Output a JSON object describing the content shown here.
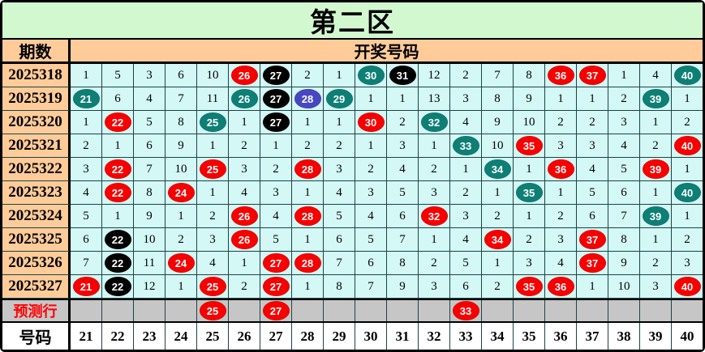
{
  "chart_data": {
    "type": "table",
    "title": "第二区",
    "header": {
      "period_label": "期数",
      "numbers_label": "开奖号码"
    },
    "columns": [
      "21",
      "22",
      "23",
      "24",
      "25",
      "26",
      "27",
      "28",
      "29",
      "30",
      "31",
      "32",
      "33",
      "34",
      "35",
      "36",
      "37",
      "38",
      "39",
      "40"
    ],
    "rows": [
      {
        "period": "2025318",
        "cells": [
          "1",
          "5",
          "3",
          "6",
          "10",
          "26:red",
          "27:black",
          "2",
          "1",
          "30:teal",
          "31:black",
          "12",
          "2",
          "7",
          "8",
          "36:red",
          "37:red",
          "1",
          "4",
          "40:teal"
        ]
      },
      {
        "period": "2025319",
        "cells": [
          "21:teal",
          "6",
          "4",
          "7",
          "11",
          "26:teal",
          "27:black",
          "28:blue",
          "29:teal",
          "1",
          "1",
          "13",
          "3",
          "8",
          "9",
          "1",
          "1",
          "2",
          "39:teal",
          "1"
        ]
      },
      {
        "period": "2025320",
        "cells": [
          "1",
          "22:red",
          "5",
          "8",
          "25:teal",
          "1",
          "27:black",
          "1",
          "1",
          "30:red",
          "2",
          "32:teal",
          "4",
          "9",
          "10",
          "2",
          "2",
          "3",
          "1",
          "2"
        ]
      },
      {
        "period": "2025321",
        "cells": [
          "2",
          "1",
          "6",
          "9",
          "1",
          "2",
          "1",
          "2",
          "2",
          "1",
          "3",
          "1",
          "33:teal",
          "10",
          "35:red",
          "3",
          "3",
          "4",
          "2",
          "40:red"
        ]
      },
      {
        "period": "2025322",
        "cells": [
          "3",
          "22:red",
          "7",
          "10",
          "25:red",
          "3",
          "2",
          "28:red",
          "3",
          "2",
          "4",
          "2",
          "1",
          "34:teal",
          "1",
          "36:red",
          "4",
          "5",
          "39:red",
          "1"
        ]
      },
      {
        "period": "2025323",
        "cells": [
          "4",
          "22:red",
          "8",
          "24:red",
          "1",
          "4",
          "3",
          "1",
          "4",
          "3",
          "5",
          "3",
          "2",
          "1",
          "35:teal",
          "1",
          "5",
          "6",
          "1",
          "40:teal"
        ]
      },
      {
        "period": "2025324",
        "cells": [
          "5",
          "1",
          "9",
          "1",
          "2",
          "26:red",
          "4",
          "28:red",
          "5",
          "4",
          "6",
          "32:red",
          "3",
          "2",
          "1",
          "2",
          "6",
          "7",
          "39:teal",
          "1"
        ]
      },
      {
        "period": "2025325",
        "cells": [
          "6",
          "22:black",
          "10",
          "2",
          "3",
          "26:red",
          "5",
          "1",
          "6",
          "5",
          "7",
          "1",
          "4",
          "34:red",
          "2",
          "3",
          "37:red",
          "8",
          "1",
          "2"
        ]
      },
      {
        "period": "2025326",
        "cells": [
          "7",
          "22:black",
          "11",
          "24:red",
          "4",
          "1",
          "27:red",
          "28:red",
          "7",
          "6",
          "8",
          "2",
          "5",
          "1",
          "3",
          "4",
          "37:red",
          "9",
          "2",
          "3"
        ]
      },
      {
        "period": "2025327",
        "cells": [
          "21:red",
          "22:black",
          "12",
          "1",
          "25:red",
          "2",
          "27:red",
          "1",
          "8",
          "7",
          "9",
          "3",
          "6",
          "2",
          "35:red",
          "36:red",
          "1",
          "10",
          "3",
          "40:red"
        ]
      }
    ],
    "prediction": {
      "label": "预测行",
      "cells": [
        "",
        "",
        "",
        "",
        "25:red",
        "",
        "27:red",
        "",
        "",
        "",
        "",
        "",
        "33:red",
        "",
        "",
        "",
        "",
        "",
        "",
        ""
      ]
    },
    "footer": {
      "label": "号码",
      "numbers": [
        "21",
        "22",
        "23",
        "24",
        "25",
        "26",
        "27",
        "28",
        "29",
        "30",
        "31",
        "32",
        "33",
        "34",
        "35",
        "36",
        "37",
        "38",
        "39",
        "40"
      ]
    },
    "legend": {
      "ball_colors_meaning": [
        "red",
        "black",
        "teal",
        "blue"
      ]
    },
    "colors": {
      "ball_red": "#f60000",
      "ball_black": "#000000",
      "ball_teal": "#0e7f74",
      "ball_blue": "#4747c2",
      "title_bg": "#d2f8d0",
      "header_bg": "#ffcc99",
      "cell_bg": "#d3f8f6",
      "prediction_bg": "#c6c6c6",
      "prediction_text": "#ff0000",
      "grid_line": "#1c4444"
    }
  }
}
